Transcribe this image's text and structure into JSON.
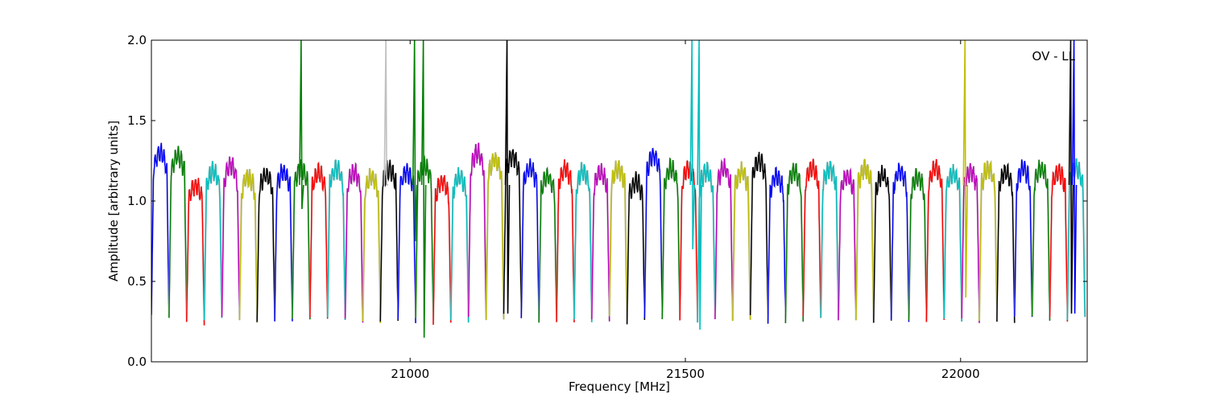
{
  "chart_data": {
    "type": "line",
    "title": "",
    "xlabel": "Frequency [MHz]",
    "ylabel": "Amplitude [arbitrary units]",
    "xlim": [
      20530,
      22230
    ],
    "ylim": [
      0.0,
      2.0
    ],
    "xticks": [
      21000,
      21500,
      22000
    ],
    "yticks": [
      0.0,
      0.5,
      1.0,
      1.5,
      2.0
    ],
    "xtick_labels": [
      "21000",
      "21500",
      "22000"
    ],
    "ytick_labels": [
      "0.0",
      "0.5",
      "1.0",
      "1.5",
      "2.0"
    ],
    "annotation": "OV - LL",
    "annotation_position": "top-right",
    "grid": false,
    "channel_width_mhz": 32,
    "start_frequency_mhz": 20530,
    "unflagged_color": "#c0c0c0",
    "color_cycle": [
      "#0000ff",
      "#008000",
      "#ff0000",
      "#00bfbf",
      "#bf00bf",
      "#bfbf00",
      "#000000"
    ],
    "channel_amplitudes": [
      1.3,
      1.28,
      1.1,
      1.18,
      1.22,
      1.15,
      1.16,
      1.18,
      1.2,
      1.17,
      1.2,
      1.18,
      1.15,
      1.2,
      1.18,
      1.22,
      1.12,
      1.15,
      1.3,
      1.26,
      1.28,
      1.2,
      1.15,
      1.2,
      1.18,
      1.18,
      1.2,
      1.12,
      1.28,
      1.2,
      1.2,
      1.18,
      1.2,
      1.18,
      1.25,
      1.15,
      1.18,
      1.2,
      1.2,
      1.15,
      1.2,
      1.16,
      1.18,
      1.15,
      1.2,
      1.17,
      1.18,
      1.2,
      1.18,
      1.2,
      1.2,
      1.18,
      1.2
    ],
    "spikes": [
      {
        "x": 20802,
        "ymin": 0.95,
        "ymax": 2.0,
        "color": "#008000"
      },
      {
        "x": 20956,
        "ymin": 1.1,
        "ymax": 2.0,
        "color": "#c0c0c0"
      },
      {
        "x": 21008,
        "ymin": 0.75,
        "ymax": 2.0,
        "color": "#008000"
      },
      {
        "x": 21024,
        "ymin": 0.15,
        "ymax": 2.0,
        "color": "#008000"
      },
      {
        "x": 21176,
        "ymin": 0.3,
        "ymax": 2.0,
        "color": "#000000"
      },
      {
        "x": 21512,
        "ymin": 0.7,
        "ymax": 2.0,
        "color": "#00bfbf"
      },
      {
        "x": 21525,
        "ymin": 0.2,
        "ymax": 2.0,
        "color": "#00bfbf"
      },
      {
        "x": 22008,
        "ymin": 0.4,
        "ymax": 2.0,
        "color": "#bfbf00"
      },
      {
        "x": 22200,
        "ymin": 0.3,
        "ymax": 2.0,
        "color": "#000000"
      },
      {
        "x": 22206,
        "ymin": 0.3,
        "ymax": 2.0,
        "color": "#0000ff"
      }
    ]
  }
}
